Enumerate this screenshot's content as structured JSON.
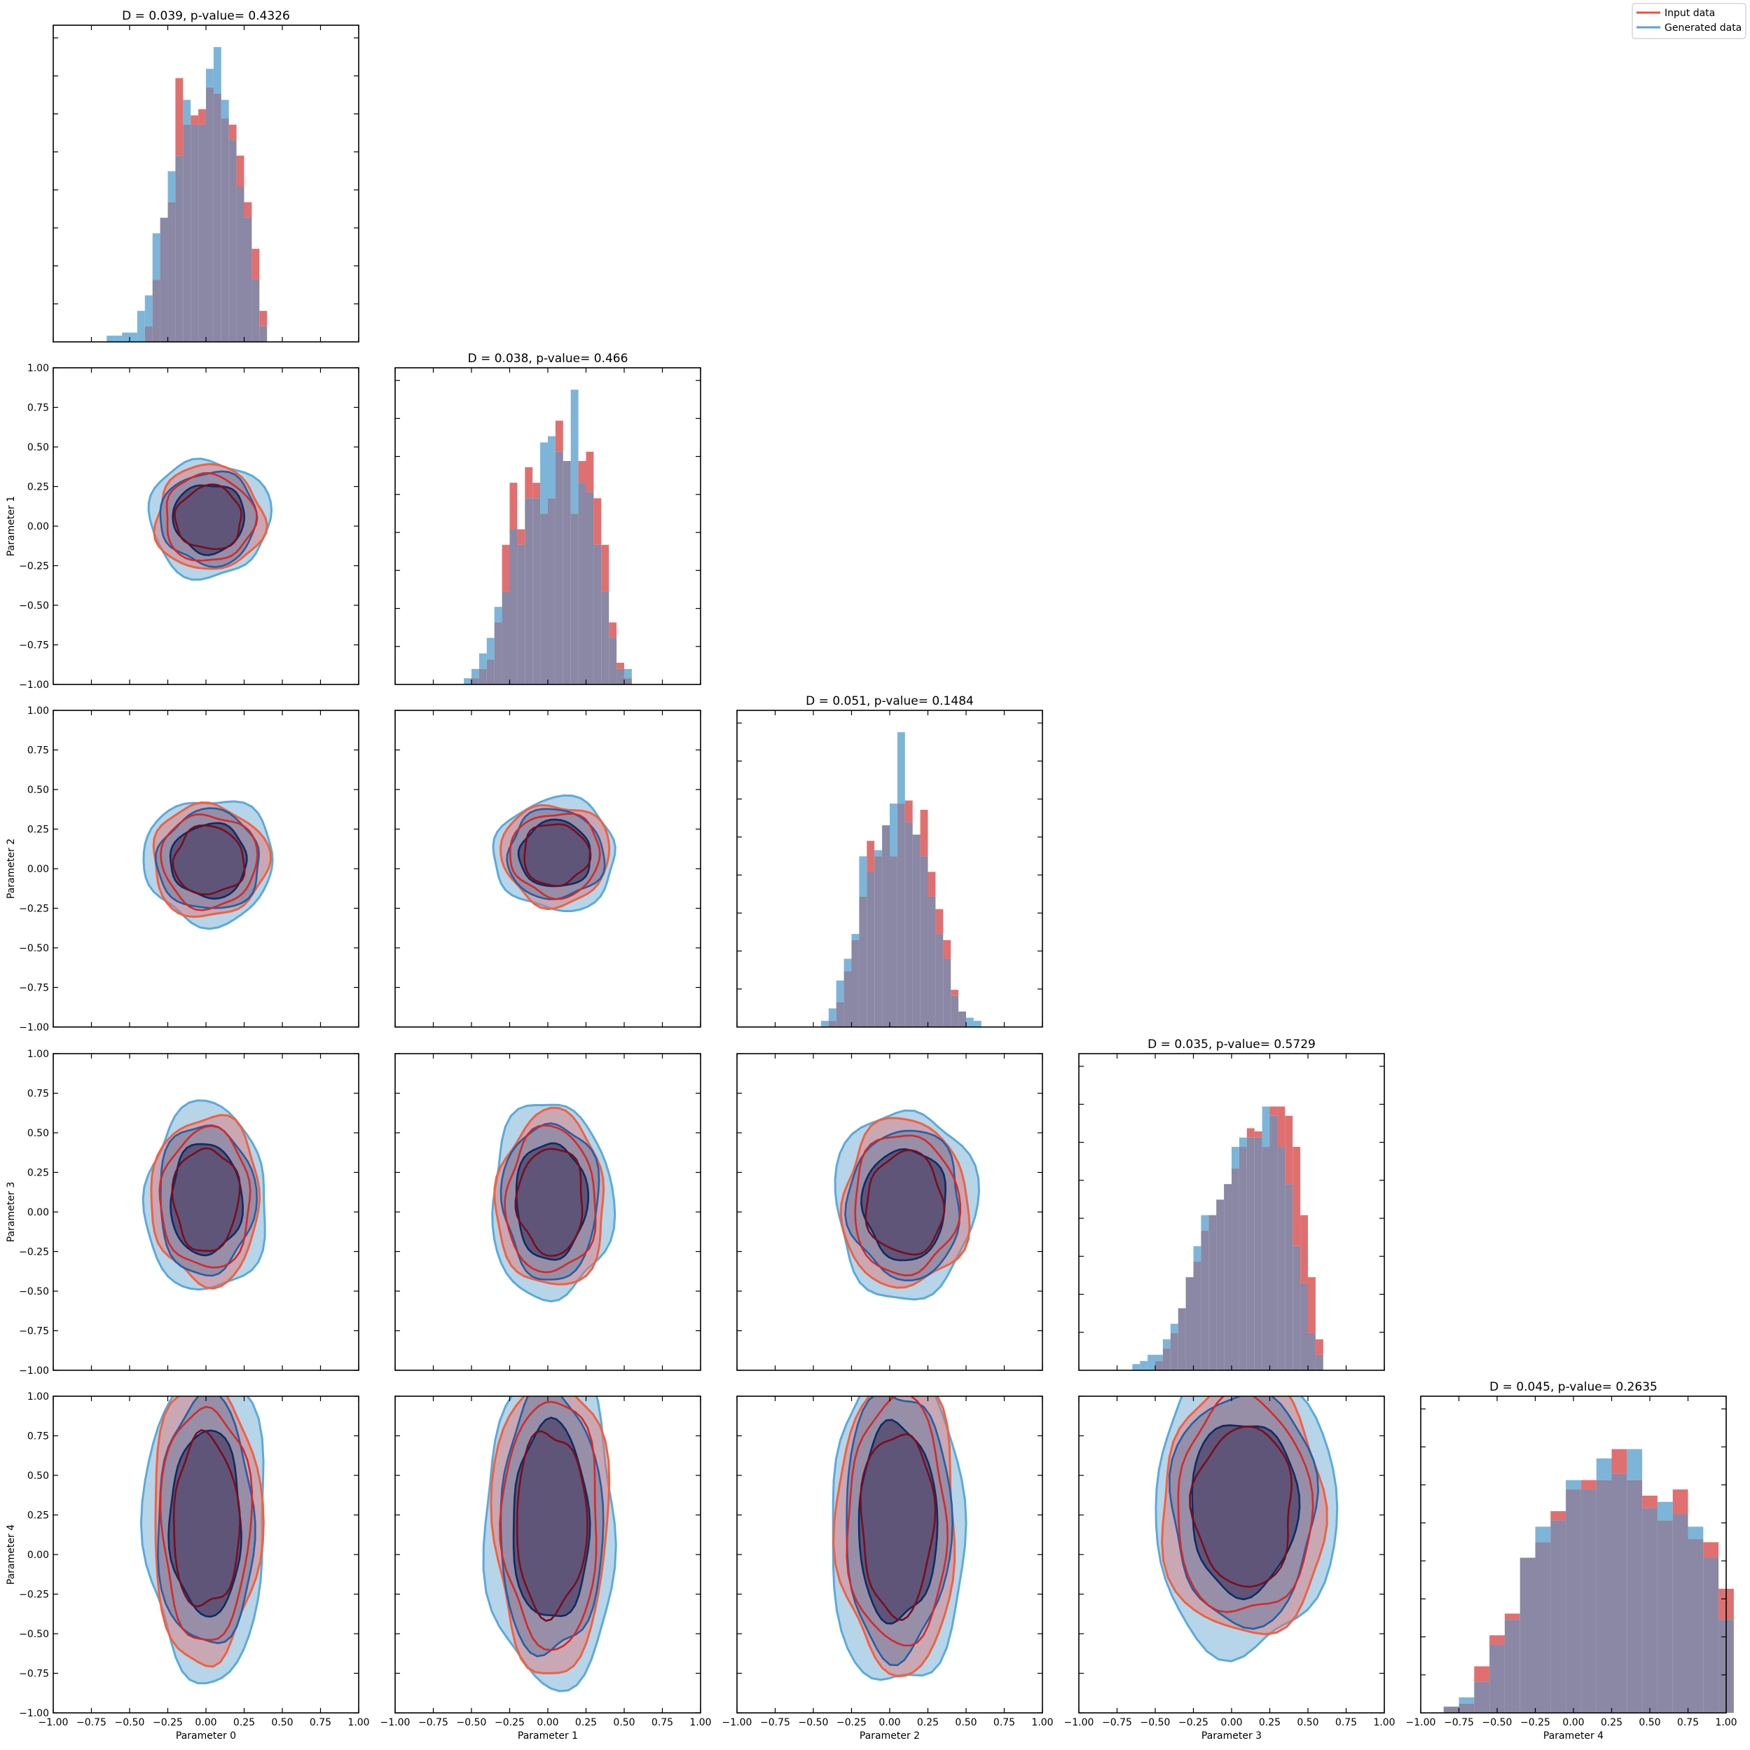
{
  "chart_data": {
    "type": "corner",
    "n_params": 5,
    "axis_range": [
      -1.0,
      1.0
    ],
    "ticks": [
      -1.0,
      -0.75,
      -0.5,
      -0.25,
      0.0,
      0.25,
      0.5,
      0.75,
      1.0
    ],
    "tick_labels": [
      "−1.00",
      "−0.75",
      "−0.50",
      "−0.25",
      "0.00",
      "0.25",
      "0.50",
      "0.75",
      "1.00"
    ],
    "param_labels": [
      "Parameter 0",
      "Parameter 1",
      "Parameter 2",
      "Parameter 3",
      "Parameter 4"
    ],
    "legend": {
      "placement": "top-right",
      "entries": [
        {
          "label": "Input data",
          "color": "#e8533f"
        },
        {
          "label": "Generated data",
          "color": "#5ca3d6"
        }
      ]
    },
    "colors": {
      "input_fill": "#e07070",
      "generated_fill": "#5da2cf",
      "overlap": "#8a88a4",
      "input_line_outer": "#f2603f",
      "input_line_mid": "#d62828",
      "input_line_inner": "#7a0d1e",
      "gen_line_outer": "#5aaadb",
      "gen_line_mid": "#1f5fa8",
      "gen_line_inner": "#0c2c63",
      "contour_core": "#5c5275"
    },
    "diagonal": [
      {
        "title": "D = 0.039, p-value= 0.4326",
        "bins": [
          -0.65,
          -0.6,
          -0.55,
          -0.5,
          -0.45,
          -0.4,
          -0.35,
          -0.3,
          -0.25,
          -0.2,
          -0.15,
          -0.1,
          -0.05,
          0.0,
          0.05,
          0.1,
          0.15,
          0.2,
          0.25,
          0.3,
          0.35,
          0.4
        ],
        "input": [
          0,
          0,
          0,
          0,
          0,
          0.05,
          0.2,
          0.4,
          0.45,
          0.85,
          0.7,
          0.73,
          0.75,
          0.82,
          0.8,
          0.72,
          0.7,
          0.6,
          0.45,
          0.3,
          0.1
        ],
        "generated": [
          0.02,
          0.02,
          0.03,
          0.03,
          0.1,
          0.15,
          0.35,
          0.4,
          0.55,
          0.6,
          0.78,
          0.7,
          0.7,
          0.88,
          0.95,
          0.78,
          0.65,
          0.5,
          0.4,
          0.2,
          0.05
        ]
      },
      {
        "title": "D = 0.038, p-value= 0.466",
        "bins": [
          -0.55,
          -0.5,
          -0.45,
          -0.4,
          -0.35,
          -0.3,
          -0.25,
          -0.2,
          -0.15,
          -0.1,
          -0.05,
          0.0,
          0.05,
          0.1,
          0.15,
          0.2,
          0.25,
          0.3,
          0.35,
          0.4,
          0.45,
          0.5,
          0.55
        ],
        "input": [
          0,
          0.02,
          0.05,
          0.08,
          0.2,
          0.45,
          0.65,
          0.5,
          0.7,
          0.65,
          0.55,
          0.6,
          0.85,
          0.72,
          0.55,
          0.72,
          0.75,
          0.6,
          0.45,
          0.2,
          0.07,
          0.02
        ],
        "generated": [
          0.02,
          0.05,
          0.1,
          0.15,
          0.25,
          0.3,
          0.5,
          0.45,
          0.6,
          0.6,
          0.78,
          0.8,
          0.75,
          0.72,
          0.95,
          0.65,
          0.62,
          0.45,
          0.3,
          0.15,
          0.05,
          0.05
        ]
      },
      {
        "title": "D = 0.051, p-value= 0.1484",
        "bins": [
          -0.5,
          -0.45,
          -0.4,
          -0.35,
          -0.3,
          -0.25,
          -0.2,
          -0.15,
          -0.1,
          -0.05,
          0.0,
          0.05,
          0.1,
          0.15,
          0.2,
          0.25,
          0.3,
          0.35,
          0.4,
          0.45,
          0.5,
          0.55,
          0.6
        ],
        "input": [
          0,
          0,
          0.02,
          0.08,
          0.18,
          0.28,
          0.42,
          0.6,
          0.55,
          0.65,
          0.55,
          0.72,
          0.73,
          0.62,
          0.7,
          0.5,
          0.38,
          0.28,
          0.12,
          0.05,
          0,
          0
        ],
        "generated": [
          0,
          0.02,
          0.06,
          0.15,
          0.22,
          0.3,
          0.55,
          0.5,
          0.57,
          0.65,
          0.72,
          0.95,
          0.66,
          0.62,
          0.55,
          0.42,
          0.3,
          0.22,
          0.1,
          0.05,
          0.03,
          0.02
        ]
      },
      {
        "title": "D = 0.035, p-value= 0.5729",
        "bins": [
          -0.65,
          -0.6,
          -0.55,
          -0.5,
          -0.45,
          -0.4,
          -0.35,
          -0.3,
          -0.25,
          -0.2,
          -0.15,
          -0.1,
          -0.05,
          0.0,
          0.05,
          0.1,
          0.15,
          0.2,
          0.25,
          0.3,
          0.35,
          0.4,
          0.45,
          0.5,
          0.55,
          0.6
        ],
        "input": [
          0,
          0,
          0,
          0.03,
          0.07,
          0.12,
          0.2,
          0.3,
          0.35,
          0.45,
          0.5,
          0.55,
          0.6,
          0.65,
          0.72,
          0.78,
          0.77,
          0.72,
          0.85,
          0.85,
          0.82,
          0.72,
          0.5,
          0.3,
          0.1
        ],
        "generated": [
          0.02,
          0.03,
          0.05,
          0.05,
          0.1,
          0.15,
          0.2,
          0.3,
          0.4,
          0.5,
          0.5,
          0.55,
          0.6,
          0.72,
          0.75,
          0.75,
          0.75,
          0.85,
          0.82,
          0.72,
          0.6,
          0.4,
          0.28,
          0.12,
          0.05
        ]
      },
      {
        "title": "D = 0.045, p-value= 0.2635",
        "bins": [
          -0.85,
          -0.75,
          -0.65,
          -0.55,
          -0.45,
          -0.35,
          -0.25,
          -0.15,
          -0.05,
          0.05,
          0.15,
          0.25,
          0.35,
          0.45,
          0.55,
          0.65,
          0.75,
          0.85,
          0.95,
          1.05
        ],
        "input": [
          0.02,
          0.03,
          0.15,
          0.25,
          0.32,
          0.5,
          0.55,
          0.65,
          0.72,
          0.75,
          0.75,
          0.85,
          0.75,
          0.7,
          0.62,
          0.72,
          0.56,
          0.55,
          0.4
        ],
        "generated": [
          0.02,
          0.05,
          0.1,
          0.22,
          0.3,
          0.5,
          0.6,
          0.62,
          0.75,
          0.72,
          0.82,
          0.77,
          0.85,
          0.66,
          0.68,
          0.64,
          0.6,
          0.5,
          0.3
        ]
      }
    ],
    "pairs": [
      {
        "row": 1,
        "col": 0,
        "cx": 0.02,
        "cy": 0.05,
        "rx": 0.3,
        "ry": 0.28
      },
      {
        "row": 2,
        "col": 0,
        "cx": 0.02,
        "cy": 0.05,
        "rx": 0.32,
        "ry": 0.3
      },
      {
        "row": 2,
        "col": 1,
        "cx": 0.05,
        "cy": 0.09,
        "rx": 0.3,
        "ry": 0.27
      },
      {
        "row": 3,
        "col": 0,
        "cx": 0.0,
        "cy": 0.08,
        "rx": 0.3,
        "ry": 0.45
      },
      {
        "row": 3,
        "col": 1,
        "cx": 0.02,
        "cy": 0.07,
        "rx": 0.3,
        "ry": 0.47
      },
      {
        "row": 3,
        "col": 2,
        "cx": 0.1,
        "cy": 0.05,
        "rx": 0.35,
        "ry": 0.45
      },
      {
        "row": 4,
        "col": 0,
        "cx": 0.0,
        "cy": 0.2,
        "rx": 0.3,
        "ry": 0.75
      },
      {
        "row": 4,
        "col": 1,
        "cx": 0.02,
        "cy": 0.2,
        "rx": 0.32,
        "ry": 0.8
      },
      {
        "row": 4,
        "col": 2,
        "cx": 0.05,
        "cy": 0.2,
        "rx": 0.33,
        "ry": 0.8
      },
      {
        "row": 4,
        "col": 3,
        "cx": 0.08,
        "cy": 0.3,
        "rx": 0.45,
        "ry": 0.7
      }
    ]
  }
}
